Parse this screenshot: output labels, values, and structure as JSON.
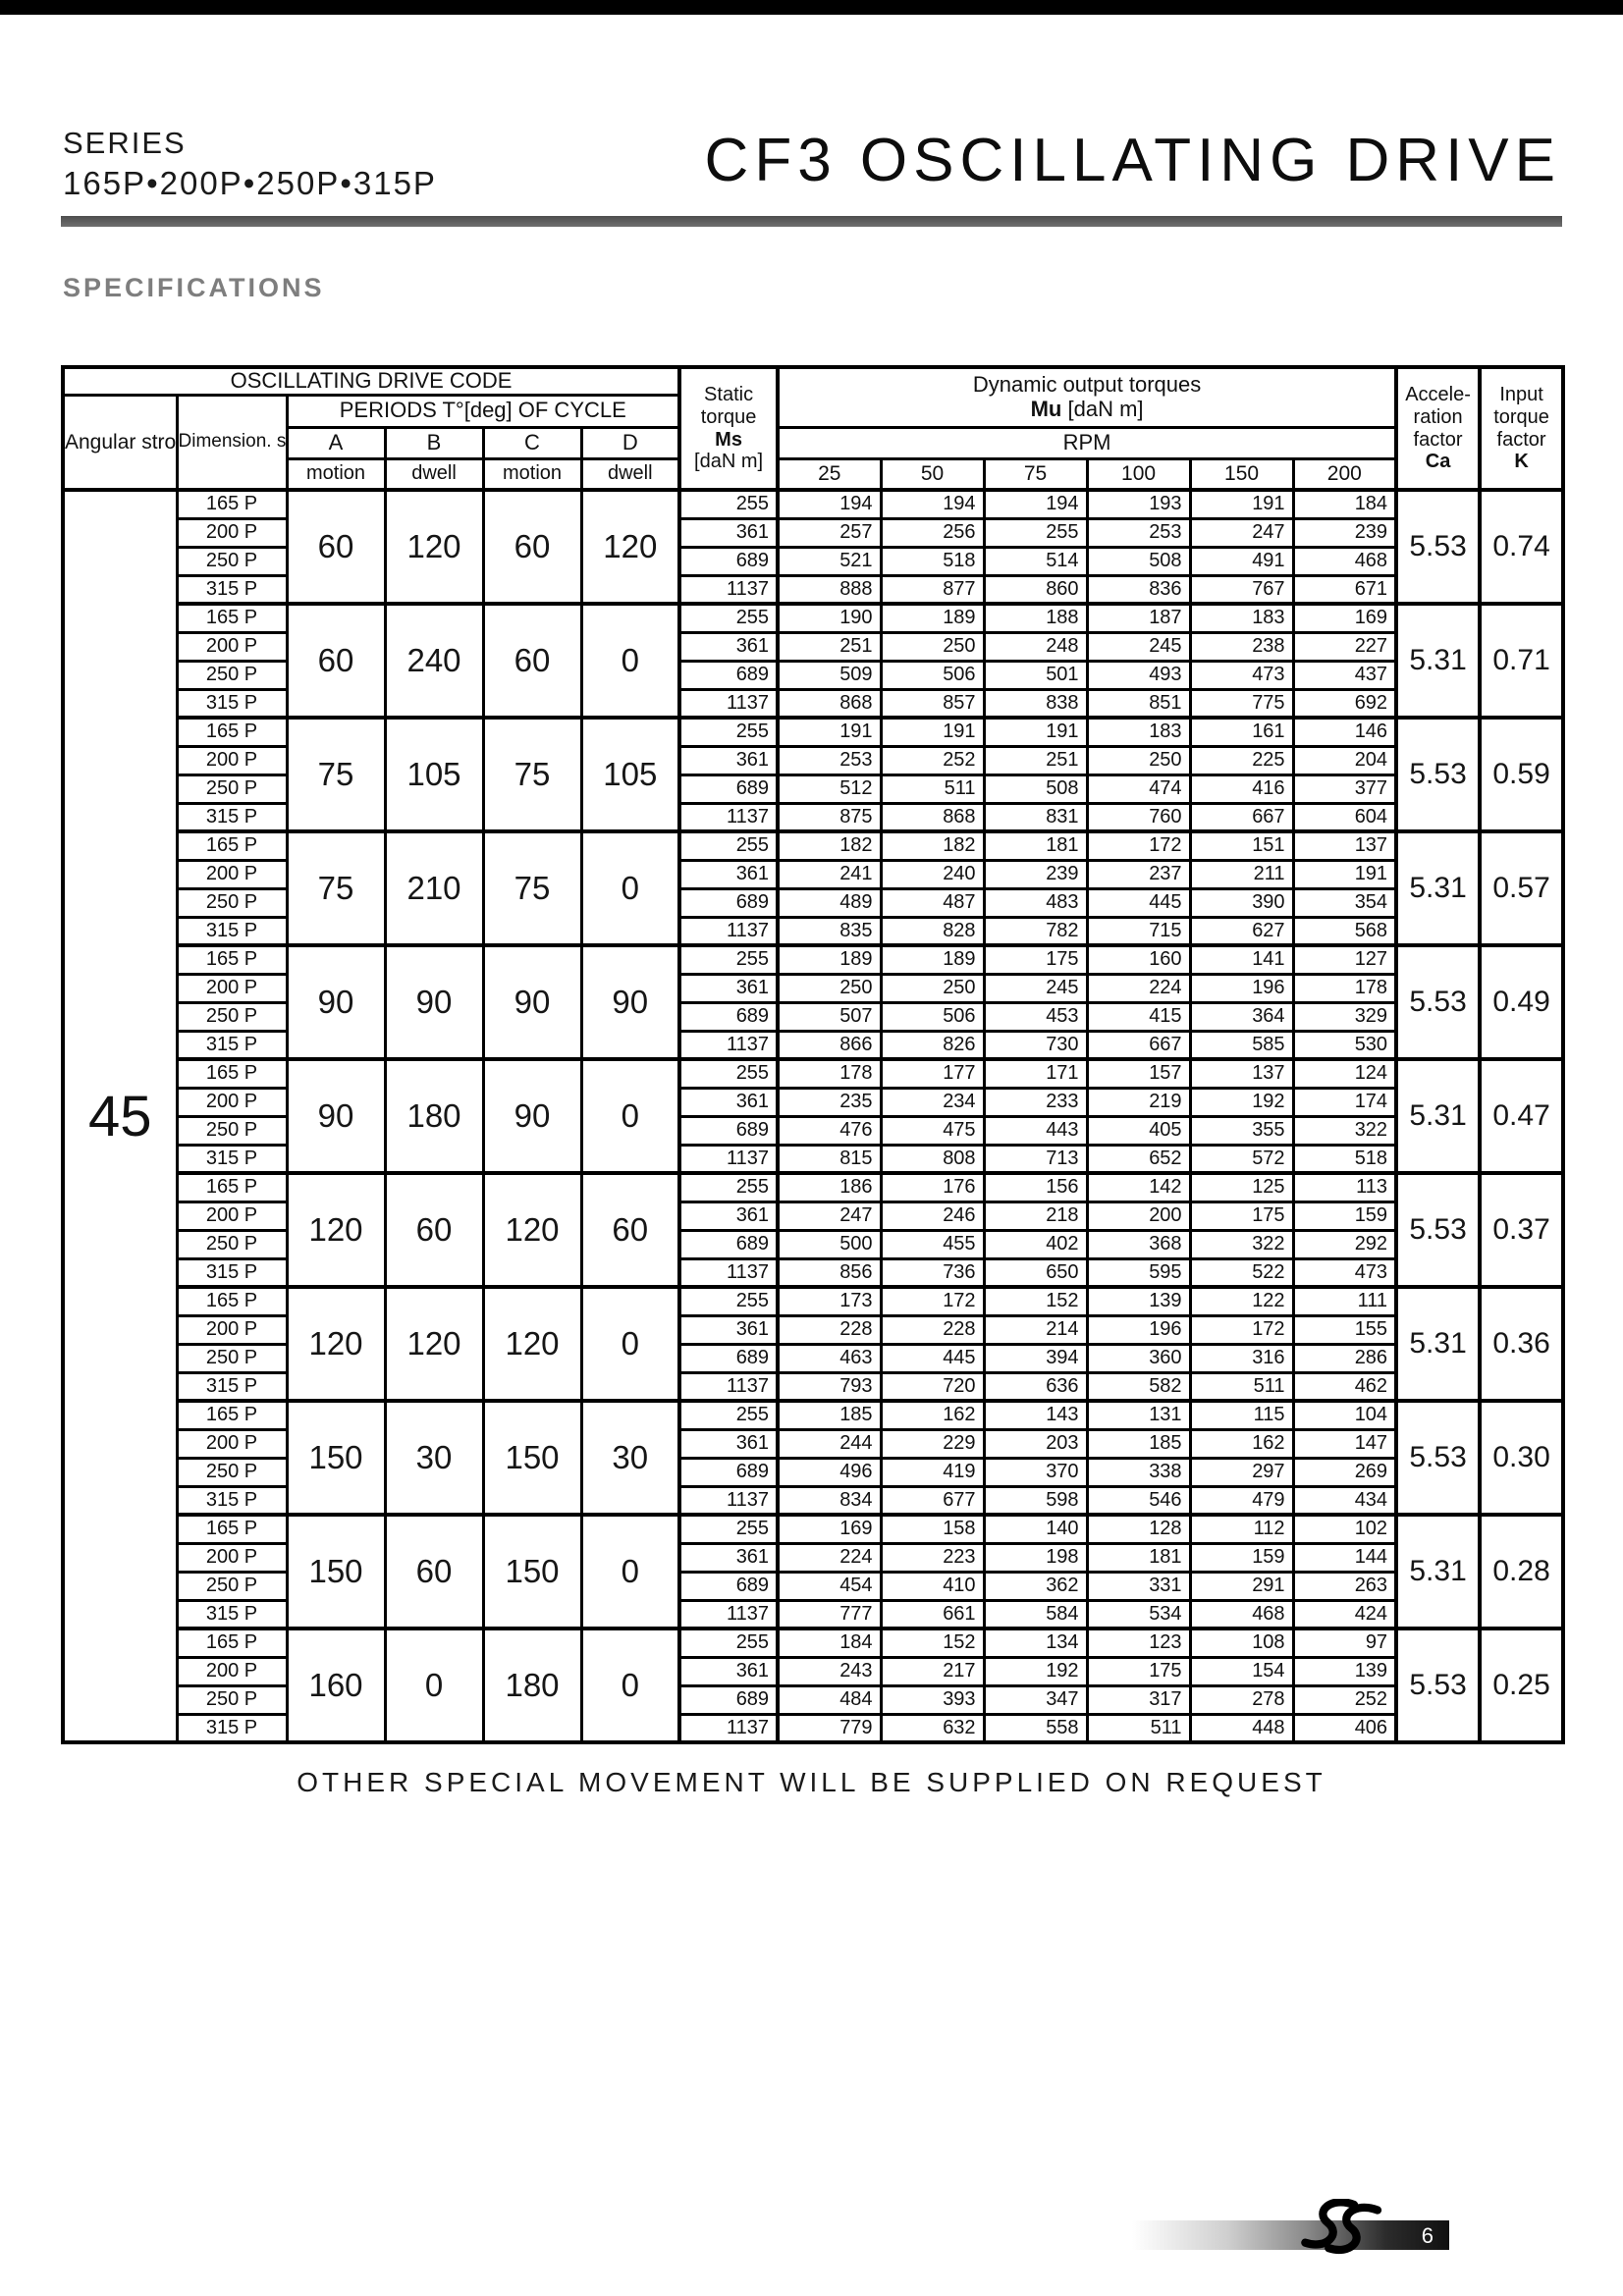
{
  "page": {
    "series_label": "SERIES",
    "series_models": "165P•200P•250P•315P",
    "title": "CF3 OSCILLATING DRIVE",
    "section_heading": "SPECIFICATIONS",
    "footer_note": "OTHER SPECIAL MOVEMENT WILL BE SUPPLIED ON REQUEST",
    "page_number": "6"
  },
  "table": {
    "header": {
      "osc_code": "OSCILLATING DRIVE CODE",
      "angular_stroke": "Angular\nstroke\nH°[deg]",
      "dimension_series": "Dimension.\nseries",
      "periods_title": "PERIODS T°[deg] OF CYCLE",
      "period_letters": [
        "A",
        "B",
        "C",
        "D"
      ],
      "period_types": [
        "motion",
        "dwell",
        "motion",
        "dwell"
      ],
      "static_torque_title": "Static\ntorque",
      "static_torque_sym": "Ms",
      "static_torque_unit": "[daN m]",
      "dynamic_title": "Dynamic output torques",
      "dynamic_sym": "Mu",
      "dynamic_unit": "[daN m]",
      "rpm_label": "RPM",
      "rpm_values": [
        "25",
        "50",
        "75",
        "100",
        "150",
        "200"
      ],
      "accel_title": "Accele-\nration\nfactor",
      "accel_sym": "Ca",
      "input_title": "Input\ntorque\nfactor",
      "input_sym": "K"
    },
    "angular_stroke_value": "45",
    "groups": [
      {
        "periods": [
          "60",
          "120",
          "60",
          "120"
        ],
        "ca": "5.53",
        "k": "0.74",
        "rows": [
          {
            "series": "165 P",
            "ms": "255",
            "rpm": [
              "194",
              "194",
              "194",
              "193",
              "191",
              "184"
            ]
          },
          {
            "series": "200 P",
            "ms": "361",
            "rpm": [
              "257",
              "256",
              "255",
              "253",
              "247",
              "239"
            ]
          },
          {
            "series": "250 P",
            "ms": "689",
            "rpm": [
              "521",
              "518",
              "514",
              "508",
              "491",
              "468"
            ]
          },
          {
            "series": "315 P",
            "ms": "1137",
            "rpm": [
              "888",
              "877",
              "860",
              "836",
              "767",
              "671"
            ]
          }
        ]
      },
      {
        "periods": [
          "60",
          "240",
          "60",
          "0"
        ],
        "ca": "5.31",
        "k": "0.71",
        "rows": [
          {
            "series": "165 P",
            "ms": "255",
            "rpm": [
              "190",
              "189",
              "188",
              "187",
              "183",
              "169"
            ]
          },
          {
            "series": "200 P",
            "ms": "361",
            "rpm": [
              "251",
              "250",
              "248",
              "245",
              "238",
              "227"
            ]
          },
          {
            "series": "250 P",
            "ms": "689",
            "rpm": [
              "509",
              "506",
              "501",
              "493",
              "473",
              "437"
            ]
          },
          {
            "series": "315 P",
            "ms": "1137",
            "rpm": [
              "868",
              "857",
              "838",
              "851",
              "775",
              "692"
            ]
          }
        ]
      },
      {
        "periods": [
          "75",
          "105",
          "75",
          "105"
        ],
        "ca": "5.53",
        "k": "0.59",
        "rows": [
          {
            "series": "165 P",
            "ms": "255",
            "rpm": [
              "191",
              "191",
              "191",
              "183",
              "161",
              "146"
            ]
          },
          {
            "series": "200 P",
            "ms": "361",
            "rpm": [
              "253",
              "252",
              "251",
              "250",
              "225",
              "204"
            ]
          },
          {
            "series": "250 P",
            "ms": "689",
            "rpm": [
              "512",
              "511",
              "508",
              "474",
              "416",
              "377"
            ]
          },
          {
            "series": "315 P",
            "ms": "1137",
            "rpm": [
              "875",
              "868",
              "831",
              "760",
              "667",
              "604"
            ]
          }
        ]
      },
      {
        "periods": [
          "75",
          "210",
          "75",
          "0"
        ],
        "ca": "5.31",
        "k": "0.57",
        "rows": [
          {
            "series": "165 P",
            "ms": "255",
            "rpm": [
              "182",
              "182",
              "181",
              "172",
              "151",
              "137"
            ]
          },
          {
            "series": "200 P",
            "ms": "361",
            "rpm": [
              "241",
              "240",
              "239",
              "237",
              "211",
              "191"
            ]
          },
          {
            "series": "250 P",
            "ms": "689",
            "rpm": [
              "489",
              "487",
              "483",
              "445",
              "390",
              "354"
            ]
          },
          {
            "series": "315 P",
            "ms": "1137",
            "rpm": [
              "835",
              "828",
              "782",
              "715",
              "627",
              "568"
            ]
          }
        ]
      },
      {
        "periods": [
          "90",
          "90",
          "90",
          "90"
        ],
        "ca": "5.53",
        "k": "0.49",
        "rows": [
          {
            "series": "165 P",
            "ms": "255",
            "rpm": [
              "189",
              "189",
              "175",
              "160",
              "141",
              "127"
            ]
          },
          {
            "series": "200 P",
            "ms": "361",
            "rpm": [
              "250",
              "250",
              "245",
              "224",
              "196",
              "178"
            ]
          },
          {
            "series": "250 P",
            "ms": "689",
            "rpm": [
              "507",
              "506",
              "453",
              "415",
              "364",
              "329"
            ]
          },
          {
            "series": "315 P",
            "ms": "1137",
            "rpm": [
              "866",
              "826",
              "730",
              "667",
              "585",
              "530"
            ]
          }
        ]
      },
      {
        "periods": [
          "90",
          "180",
          "90",
          "0"
        ],
        "ca": "5.31",
        "k": "0.47",
        "rows": [
          {
            "series": "165 P",
            "ms": "255",
            "rpm": [
              "178",
              "177",
              "171",
              "157",
              "137",
              "124"
            ]
          },
          {
            "series": "200 P",
            "ms": "361",
            "rpm": [
              "235",
              "234",
              "233",
              "219",
              "192",
              "174"
            ]
          },
          {
            "series": "250 P",
            "ms": "689",
            "rpm": [
              "476",
              "475",
              "443",
              "405",
              "355",
              "322"
            ]
          },
          {
            "series": "315 P",
            "ms": "1137",
            "rpm": [
              "815",
              "808",
              "713",
              "652",
              "572",
              "518"
            ]
          }
        ]
      },
      {
        "periods": [
          "120",
          "60",
          "120",
          "60"
        ],
        "ca": "5.53",
        "k": "0.37",
        "rows": [
          {
            "series": "165 P",
            "ms": "255",
            "rpm": [
              "186",
              "176",
              "156",
              "142",
              "125",
              "113"
            ]
          },
          {
            "series": "200 P",
            "ms": "361",
            "rpm": [
              "247",
              "246",
              "218",
              "200",
              "175",
              "159"
            ]
          },
          {
            "series": "250 P",
            "ms": "689",
            "rpm": [
              "500",
              "455",
              "402",
              "368",
              "322",
              "292"
            ]
          },
          {
            "series": "315 P",
            "ms": "1137",
            "rpm": [
              "856",
              "736",
              "650",
              "595",
              "522",
              "473"
            ]
          }
        ]
      },
      {
        "periods": [
          "120",
          "120",
          "120",
          "0"
        ],
        "ca": "5.31",
        "k": "0.36",
        "rows": [
          {
            "series": "165 P",
            "ms": "255",
            "rpm": [
              "173",
              "172",
              "152",
              "139",
              "122",
              "111"
            ]
          },
          {
            "series": "200 P",
            "ms": "361",
            "rpm": [
              "228",
              "228",
              "214",
              "196",
              "172",
              "155"
            ]
          },
          {
            "series": "250 P",
            "ms": "689",
            "rpm": [
              "463",
              "445",
              "394",
              "360",
              "316",
              "286"
            ]
          },
          {
            "series": "315 P",
            "ms": "1137",
            "rpm": [
              "793",
              "720",
              "636",
              "582",
              "511",
              "462"
            ]
          }
        ]
      },
      {
        "periods": [
          "150",
          "30",
          "150",
          "30"
        ],
        "ca": "5.53",
        "k": "0.30",
        "rows": [
          {
            "series": "165 P",
            "ms": "255",
            "rpm": [
              "185",
              "162",
              "143",
              "131",
              "115",
              "104"
            ]
          },
          {
            "series": "200 P",
            "ms": "361",
            "rpm": [
              "244",
              "229",
              "203",
              "185",
              "162",
              "147"
            ]
          },
          {
            "series": "250 P",
            "ms": "689",
            "rpm": [
              "496",
              "419",
              "370",
              "338",
              "297",
              "269"
            ]
          },
          {
            "series": "315 P",
            "ms": "1137",
            "rpm": [
              "834",
              "677",
              "598",
              "546",
              "479",
              "434"
            ]
          }
        ]
      },
      {
        "periods": [
          "150",
          "60",
          "150",
          "0"
        ],
        "ca": "5.31",
        "k": "0.28",
        "rows": [
          {
            "series": "165 P",
            "ms": "255",
            "rpm": [
              "169",
              "158",
              "140",
              "128",
              "112",
              "102"
            ]
          },
          {
            "series": "200 P",
            "ms": "361",
            "rpm": [
              "224",
              "223",
              "198",
              "181",
              "159",
              "144"
            ]
          },
          {
            "series": "250 P",
            "ms": "689",
            "rpm": [
              "454",
              "410",
              "362",
              "331",
              "291",
              "263"
            ]
          },
          {
            "series": "315 P",
            "ms": "1137",
            "rpm": [
              "777",
              "661",
              "584",
              "534",
              "468",
              "424"
            ]
          }
        ]
      },
      {
        "periods": [
          "160",
          "0",
          "180",
          "0"
        ],
        "ca": "5.53",
        "k": "0.25",
        "rows": [
          {
            "series": "165 P",
            "ms": "255",
            "rpm": [
              "184",
              "152",
              "134",
              "123",
              "108",
              "97"
            ]
          },
          {
            "series": "200 P",
            "ms": "361",
            "rpm": [
              "243",
              "217",
              "192",
              "175",
              "154",
              "139"
            ]
          },
          {
            "series": "250 P",
            "ms": "689",
            "rpm": [
              "484",
              "393",
              "347",
              "317",
              "278",
              "252"
            ]
          },
          {
            "series": "315 P",
            "ms": "1137",
            "rpm": [
              "779",
              "632",
              "558",
              "511",
              "448",
              "406"
            ]
          }
        ]
      }
    ]
  }
}
